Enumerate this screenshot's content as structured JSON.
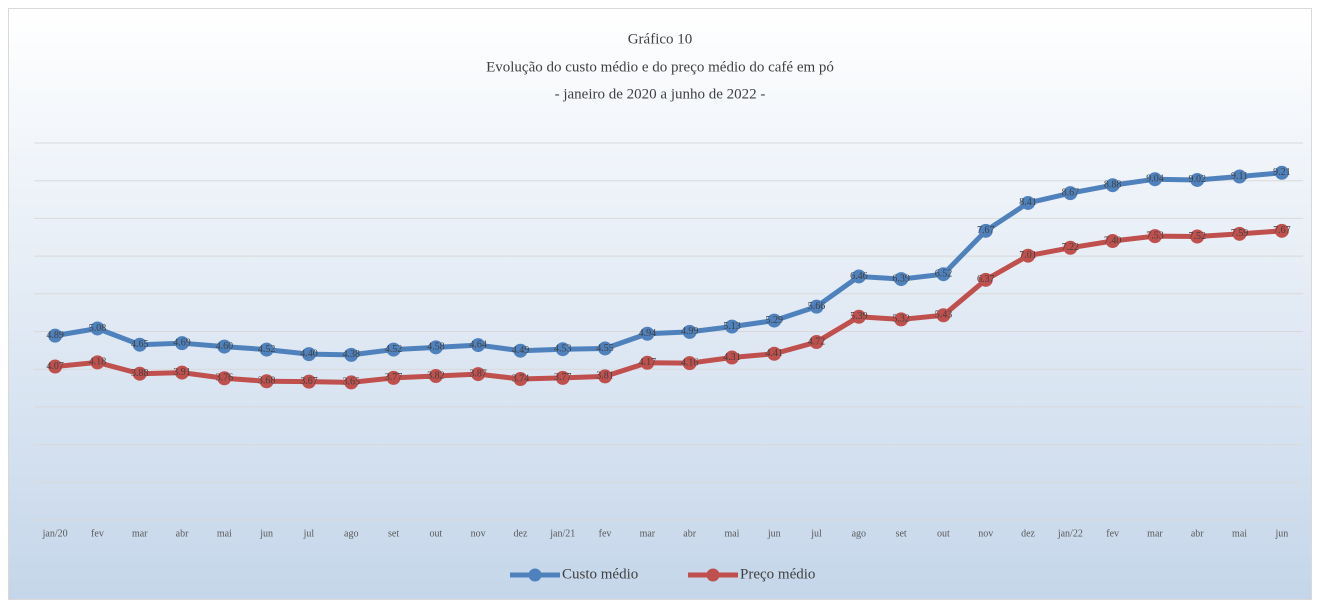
{
  "chart_data": {
    "type": "line",
    "title": "Gráfico 10",
    "subtitle": [
      "Evolução do custo médio e do preço médio do café em pó",
      "- janeiro de 2020 a junho de 2022 -"
    ],
    "categories": [
      "jan/20",
      "fev",
      "mar",
      "abr",
      "mai",
      "jun",
      "jul",
      "ago",
      "set",
      "out",
      "nov",
      "dez",
      "jan/21",
      "fev",
      "mar",
      "abr",
      "mai",
      "jun",
      "jul",
      "ago",
      "set",
      "out",
      "nov",
      "dez",
      "jan/22",
      "fev",
      "mar",
      "abr",
      "mai",
      "jun"
    ],
    "series": [
      {
        "name": "Custo médio",
        "color": "#4f81bd",
        "values": [
          4.89,
          5.08,
          4.65,
          4.69,
          4.6,
          4.52,
          4.4,
          4.38,
          4.52,
          4.58,
          4.64,
          4.49,
          4.53,
          4.55,
          4.94,
          4.99,
          5.13,
          5.29,
          5.66,
          6.46,
          6.39,
          6.52,
          7.67,
          8.41,
          8.67,
          8.88,
          9.04,
          9.02,
          9.11,
          9.21
        ],
        "value_labels": [
          "4.89",
          "5.08",
          "4.65",
          "4.69",
          "4.60",
          "4.52",
          "4.40",
          "4.38",
          "4.52",
          "4.58",
          "4.64",
          "4.49",
          "4.53",
          "4.55",
          "4.94",
          "4.99",
          "5.13",
          "5.29",
          "5.66",
          "6.46",
          "6.39",
          "6.52",
          "7.67",
          "8.41",
          "8.67",
          "8.88",
          "9.04",
          "9.02",
          "9.11",
          "9.21"
        ]
      },
      {
        "name": "Preço médio",
        "color": "#c0504d",
        "values": [
          4.07,
          4.18,
          3.88,
          3.91,
          3.76,
          3.68,
          3.67,
          3.65,
          3.77,
          3.82,
          3.87,
          3.74,
          3.77,
          3.81,
          4.17,
          4.16,
          4.31,
          4.41,
          4.72,
          5.39,
          5.32,
          5.43,
          6.37,
          7.01,
          7.22,
          7.4,
          7.53,
          7.52,
          7.59,
          7.67
        ],
        "value_labels": [
          "4.07",
          "4.18",
          "3.88",
          "3.91",
          "3.76",
          "3.68",
          "3.67",
          "3.65",
          "3.77",
          "3.82",
          "3.87",
          "3.74",
          "3.77",
          "3.81",
          "4.17",
          "4.16",
          "4.31",
          "4.41",
          "4.72",
          "5.39",
          "5.32",
          "5.43",
          "6.37",
          "7.01",
          "7.22",
          "7.40",
          "7.53",
          "7.52",
          "7.59",
          "7.67"
        ]
      }
    ],
    "ylim": [
      0,
      10
    ],
    "yticks": [
      0,
      1,
      2,
      3,
      4,
      5,
      6,
      7,
      8,
      9,
      10
    ],
    "grid": true,
    "legend": "bottom"
  }
}
